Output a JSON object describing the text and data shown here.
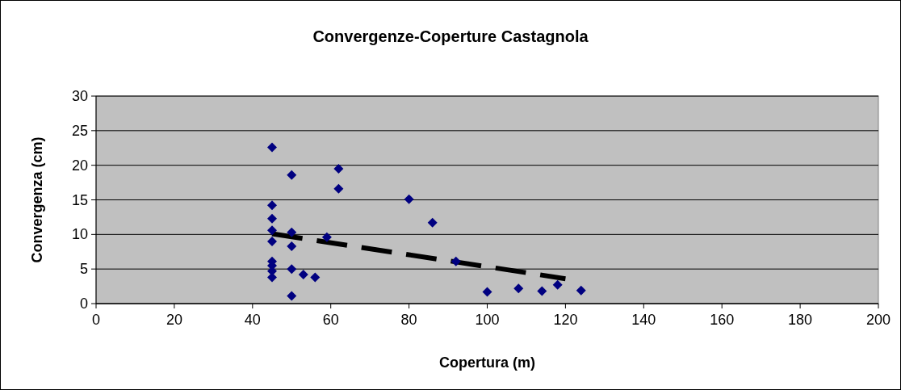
{
  "chart_data": {
    "type": "scatter",
    "title": "Convergenze-Coperture Castagnola",
    "xlabel": "Copertura (m)",
    "ylabel": "Convergenza (cm)",
    "xlim": [
      0,
      200
    ],
    "xticks": [
      0,
      20,
      40,
      60,
      80,
      100,
      120,
      140,
      160,
      180,
      200
    ],
    "ylim": [
      0,
      30
    ],
    "yticks": [
      0,
      5,
      10,
      15,
      20,
      25,
      30
    ],
    "grid": "y",
    "marker": "diamond",
    "series": [
      {
        "color": "#000080",
        "x": [
          45,
          45,
          45,
          45,
          45,
          45,
          45,
          45,
          45,
          50,
          50,
          50,
          50,
          50,
          53,
          56,
          59,
          62,
          62,
          80,
          86,
          92,
          100,
          108,
          114,
          118,
          124
        ],
        "values": [
          22.6,
          14.2,
          12.3,
          10.6,
          9.0,
          6.1,
          5.5,
          4.7,
          3.8,
          18.6,
          10.3,
          8.3,
          5.0,
          1.1,
          4.2,
          3.8,
          9.6,
          19.5,
          16.6,
          15.1,
          11.7,
          6.1,
          1.7,
          2.2,
          1.8,
          2.7,
          1.9
        ]
      },
      {
        "type": "line",
        "color": "#000000",
        "line_style": "dashed",
        "marker": "none",
        "x": [
          45,
          120
        ],
        "values": [
          10.1,
          3.6
        ]
      }
    ]
  }
}
